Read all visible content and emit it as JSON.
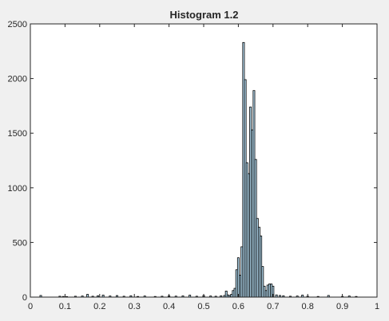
{
  "chart_data": {
    "type": "bar",
    "title": "Histogram 1.2",
    "xlabel": "",
    "ylabel": "",
    "xlim": [
      0,
      1
    ],
    "ylim": [
      0,
      2500
    ],
    "grid": false,
    "legend": "none",
    "xticks": [
      "0",
      "0.1",
      "0.2",
      "0.3",
      "0.4",
      "0.5",
      "0.6",
      "0.7",
      "0.8",
      "0.9",
      "1"
    ],
    "yticks": [
      "0",
      "500",
      "1000",
      "1500",
      "2000",
      "2500"
    ],
    "bin_width": 0.005,
    "bar_color": "#b3d9ee",
    "edge_color": "#000000",
    "bins": [
      [
        0.03,
        15
      ],
      [
        0.085,
        8
      ],
      [
        0.095,
        6
      ],
      [
        0.105,
        5
      ],
      [
        0.13,
        8
      ],
      [
        0.15,
        10
      ],
      [
        0.165,
        25
      ],
      [
        0.18,
        8
      ],
      [
        0.195,
        12
      ],
      [
        0.21,
        18
      ],
      [
        0.23,
        10
      ],
      [
        0.25,
        14
      ],
      [
        0.27,
        8
      ],
      [
        0.29,
        12
      ],
      [
        0.31,
        6
      ],
      [
        0.33,
        10
      ],
      [
        0.36,
        6
      ],
      [
        0.38,
        8
      ],
      [
        0.4,
        12
      ],
      [
        0.42,
        9
      ],
      [
        0.44,
        11
      ],
      [
        0.46,
        18
      ],
      [
        0.48,
        8
      ],
      [
        0.5,
        14
      ],
      [
        0.52,
        10
      ],
      [
        0.535,
        8
      ],
      [
        0.55,
        12
      ],
      [
        0.56,
        15
      ],
      [
        0.565,
        55
      ],
      [
        0.57,
        20
      ],
      [
        0.575,
        14
      ],
      [
        0.58,
        25
      ],
      [
        0.585,
        60
      ],
      [
        0.59,
        80
      ],
      [
        0.595,
        250
      ],
      [
        0.6,
        360
      ],
      [
        0.605,
        200
      ],
      [
        0.61,
        460
      ],
      [
        0.615,
        2330
      ],
      [
        0.62,
        1990
      ],
      [
        0.625,
        1230
      ],
      [
        0.63,
        1130
      ],
      [
        0.635,
        1740
      ],
      [
        0.64,
        1530
      ],
      [
        0.645,
        1890
      ],
      [
        0.65,
        1260
      ],
      [
        0.655,
        720
      ],
      [
        0.66,
        640
      ],
      [
        0.665,
        560
      ],
      [
        0.67,
        280
      ],
      [
        0.675,
        100
      ],
      [
        0.68,
        60
      ],
      [
        0.685,
        110
      ],
      [
        0.69,
        120
      ],
      [
        0.695,
        120
      ],
      [
        0.7,
        100
      ],
      [
        0.71,
        20
      ],
      [
        0.72,
        15
      ],
      [
        0.73,
        12
      ],
      [
        0.75,
        8
      ],
      [
        0.77,
        10
      ],
      [
        0.785,
        18
      ],
      [
        0.8,
        8
      ],
      [
        0.83,
        6
      ],
      [
        0.86,
        15
      ],
      [
        0.9,
        6
      ],
      [
        0.92,
        10
      ],
      [
        0.94,
        6
      ]
    ]
  }
}
